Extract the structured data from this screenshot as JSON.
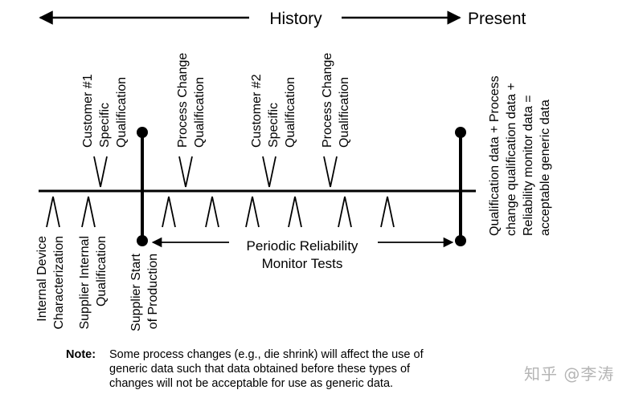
{
  "header": {
    "history_label": "History",
    "present_label": "Present"
  },
  "events_above": [
    {
      "line1": "Customer #1",
      "line2": "Specific",
      "line3": "Qualification"
    },
    {
      "line1": "Process Change",
      "line2": "Qualification"
    },
    {
      "line1": "Customer #2",
      "line2": "Specific",
      "line3": "Qualification"
    },
    {
      "line1": "Process Change",
      "line2": "Qualification"
    }
  ],
  "events_below": [
    {
      "line1": "Internal Device",
      "line2": "Characterization"
    },
    {
      "line1": "Supplier Internal",
      "line2": "Qualification"
    },
    {
      "line1": "Supplier Start",
      "line2": "of Production"
    }
  ],
  "monitor": {
    "line1": "Periodic Reliability",
    "line2": "Monitor Tests"
  },
  "generic_note": {
    "line1": "Qualification data + Process",
    "line2": "change qualification data +",
    "line3": "Reliability monitor data =",
    "line4": "acceptable generic data"
  },
  "note": {
    "label": "Note:",
    "line1": "Some process changes (e.g., die shrink) will affect the use of",
    "line2": "generic data such that data obtained before these types of",
    "line3": "changes will not be acceptable for use as generic data."
  },
  "watermark": "知乎 @李涛"
}
